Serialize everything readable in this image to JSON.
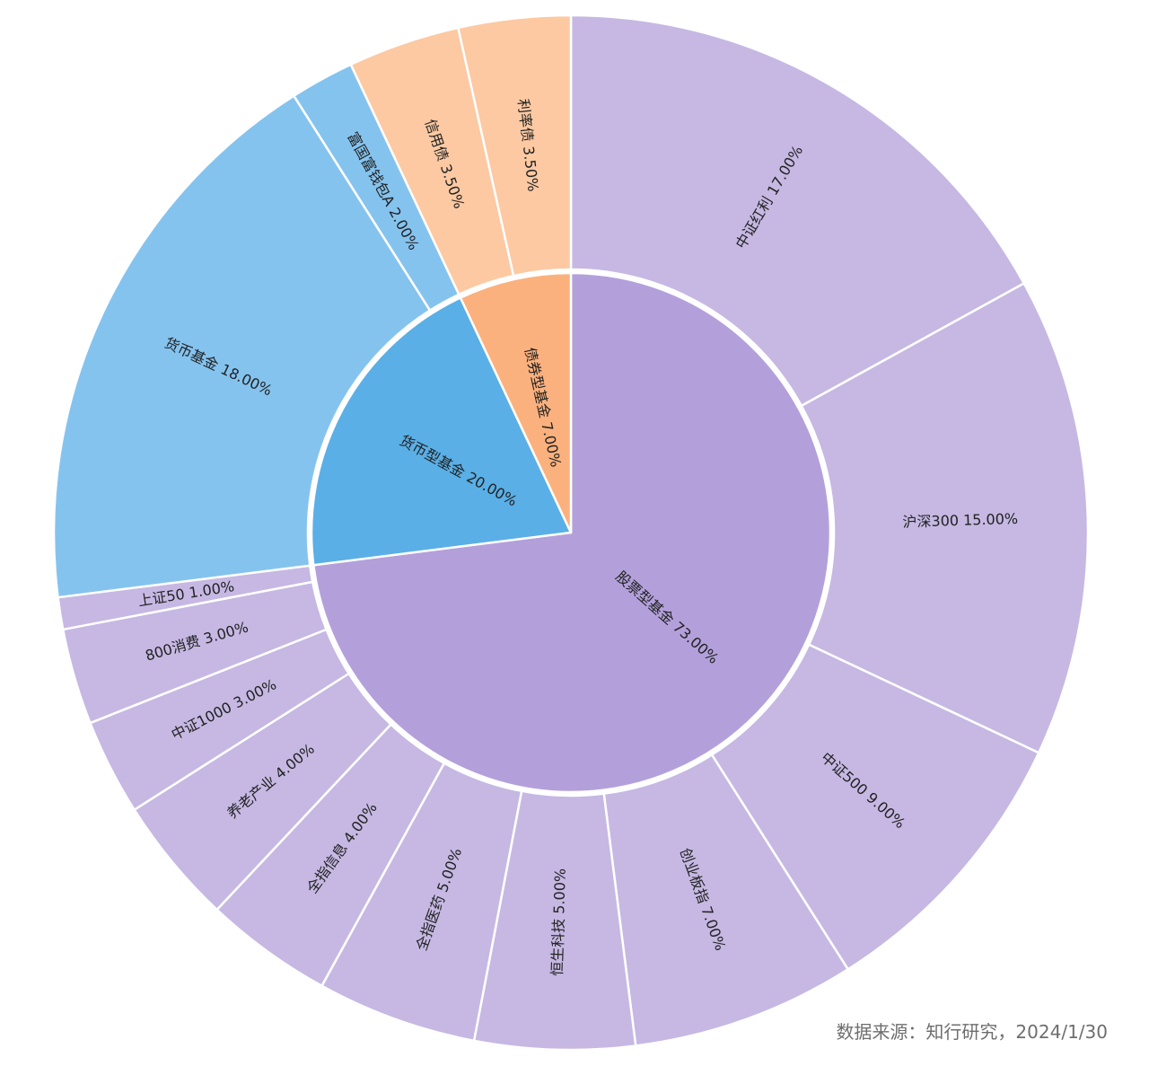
{
  "chart_data": {
    "type": "sunburst",
    "unit": "%",
    "inner": [
      {
        "name": "股票型基金",
        "value": 73.0,
        "color": "#b3a0db"
      },
      {
        "name": "货币型基金",
        "value": 20.0,
        "color": "#5aafe6"
      },
      {
        "name": "债券型基金",
        "value": 7.0,
        "color": "#fbb17e"
      }
    ],
    "outer": [
      {
        "name": "中证红利",
        "value": 17.0,
        "parent": "股票型基金",
        "color": "#c6b8e3"
      },
      {
        "name": "沪深300",
        "value": 15.0,
        "parent": "股票型基金",
        "color": "#c6b8e3"
      },
      {
        "name": "中证500",
        "value": 9.0,
        "parent": "股票型基金",
        "color": "#c6b8e3"
      },
      {
        "name": "创业板指",
        "value": 7.0,
        "parent": "股票型基金",
        "color": "#c6b8e3"
      },
      {
        "name": "恒生科技",
        "value": 5.0,
        "parent": "股票型基金",
        "color": "#c6b8e3"
      },
      {
        "name": "全指医药",
        "value": 5.0,
        "parent": "股票型基金",
        "color": "#c6b8e3"
      },
      {
        "name": "全指信息",
        "value": 4.0,
        "parent": "股票型基金",
        "color": "#c6b8e3"
      },
      {
        "name": "养老产业",
        "value": 4.0,
        "parent": "股票型基金",
        "color": "#c6b8e3"
      },
      {
        "name": "中证1000",
        "value": 3.0,
        "parent": "股票型基金",
        "color": "#c6b8e3"
      },
      {
        "name": "800消费",
        "value": 3.0,
        "parent": "股票型基金",
        "color": "#c6b8e3"
      },
      {
        "name": "上证50",
        "value": 1.0,
        "parent": "股票型基金",
        "color": "#c6b8e3"
      },
      {
        "name": "货币基金",
        "value": 18.0,
        "parent": "货币型基金",
        "color": "#85c3ef"
      },
      {
        "name": "富国富钱包A",
        "value": 2.0,
        "parent": "货币型基金",
        "color": "#85c3ef"
      },
      {
        "name": "信用债",
        "value": 3.5,
        "parent": "债券型基金",
        "color": "#fcc9a3"
      },
      {
        "name": "利率债",
        "value": 3.5,
        "parent": "债券型基金",
        "color": "#fcc9a3"
      }
    ]
  },
  "source": "数据来源：知行研究，2024/1/30"
}
